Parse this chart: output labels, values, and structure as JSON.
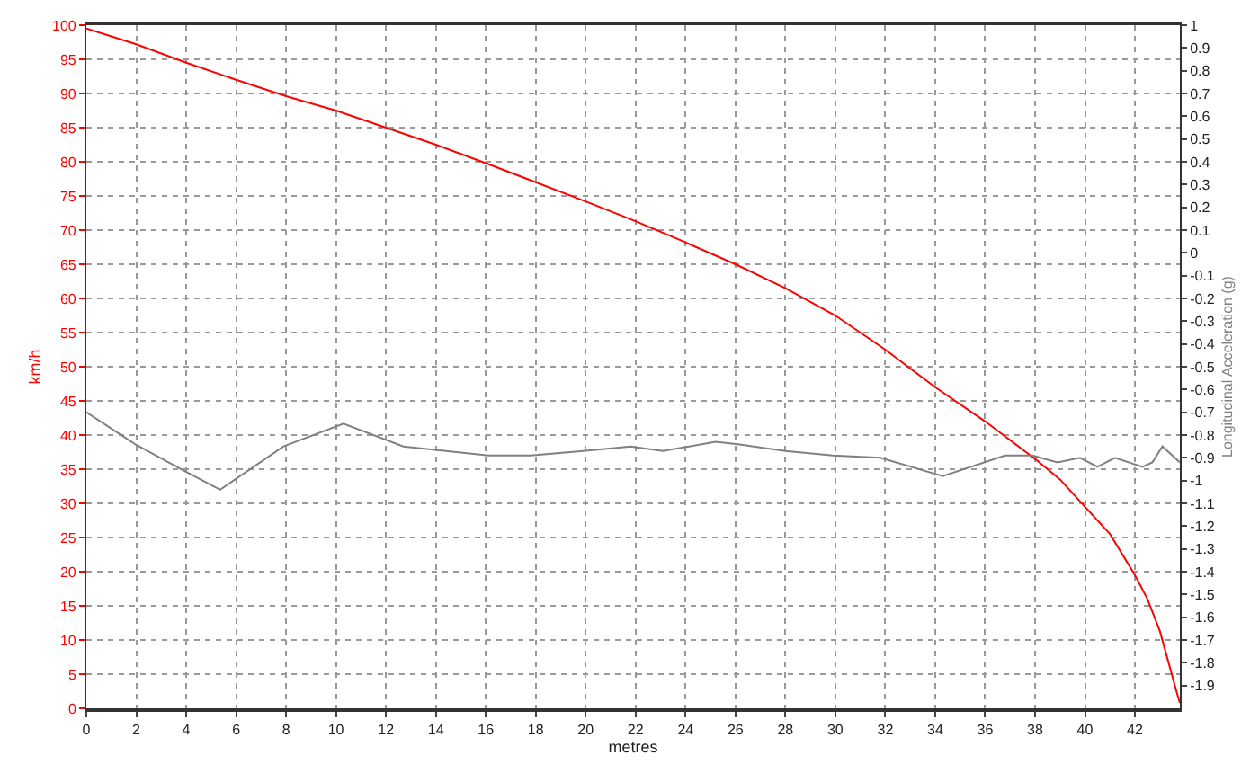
{
  "chart_data": {
    "type": "line",
    "xlabel": "metres",
    "ylabel": "km/h",
    "y2label": "Longitudinal Acceleration (g)",
    "xlim": [
      0,
      43.8
    ],
    "xticks": [
      0,
      2,
      4,
      6,
      8,
      10,
      12,
      14,
      16,
      18,
      20,
      22,
      24,
      26,
      28,
      30,
      32,
      34,
      36,
      38,
      40,
      42
    ],
    "ylim": [
      0,
      100
    ],
    "yticks": [
      0,
      5,
      10,
      15,
      20,
      25,
      30,
      35,
      40,
      45,
      50,
      55,
      60,
      65,
      70,
      75,
      80,
      85,
      90,
      95,
      100
    ],
    "y2lim": [
      -2.0,
      1
    ],
    "y2ticks": [
      1,
      0.9,
      0.8,
      0.7,
      0.6,
      0.5,
      0.4,
      0.3,
      0.2,
      0.1,
      0,
      -0.1,
      -0.2,
      -0.3,
      -0.4,
      -0.5,
      -0.6,
      -0.7,
      -0.8,
      -0.9,
      -1,
      -1.1,
      -1.2,
      -1.3,
      -1.4,
      -1.5,
      -1.6,
      -1.7,
      -1.8,
      -1.9
    ],
    "grid": true,
    "line_style": "solid",
    "series": [
      {
        "color": "#ff0000",
        "axis": "y",
        "x": [
          0,
          2,
          4,
          6,
          8,
          10,
          12,
          14,
          16,
          18,
          20,
          22,
          24,
          26,
          28,
          30,
          32,
          34,
          36,
          38,
          39,
          40,
          41,
          42,
          42.5,
          43,
          43.4,
          43.7,
          43.8
        ],
        "values": [
          99.5,
          97.2,
          94.5,
          92,
          89.6,
          87.5,
          85,
          82.5,
          79.8,
          77,
          74.2,
          71.3,
          68.2,
          65,
          61.5,
          57.5,
          52.5,
          47,
          42,
          36.5,
          33.5,
          29.5,
          25.5,
          19.5,
          16,
          11.3,
          6,
          2,
          0.8
        ]
      },
      {
        "color": "#808080",
        "axis": "y2",
        "x": [
          0,
          1.95,
          3.97,
          5.36,
          7.9,
          10.3,
          12.7,
          16.1,
          17.8,
          19.9,
          21.8,
          23.1,
          25.2,
          26.1,
          28.0,
          29.9,
          31.8,
          34.3,
          36.8,
          37.9,
          38.9,
          39.8,
          40.5,
          41.2,
          42.3,
          42.7,
          43.1,
          43.8
        ],
        "values": [
          -0.7,
          -0.84,
          -0.96,
          -1.04,
          -0.85,
          -0.75,
          -0.85,
          -0.89,
          -0.89,
          -0.87,
          -0.85,
          -0.87,
          -0.83,
          -0.84,
          -0.87,
          -0.89,
          -0.9,
          -0.98,
          -0.89,
          -0.89,
          -0.92,
          -0.9,
          -0.94,
          -0.9,
          -0.94,
          -0.92,
          -0.85,
          -0.92
        ]
      }
    ]
  }
}
